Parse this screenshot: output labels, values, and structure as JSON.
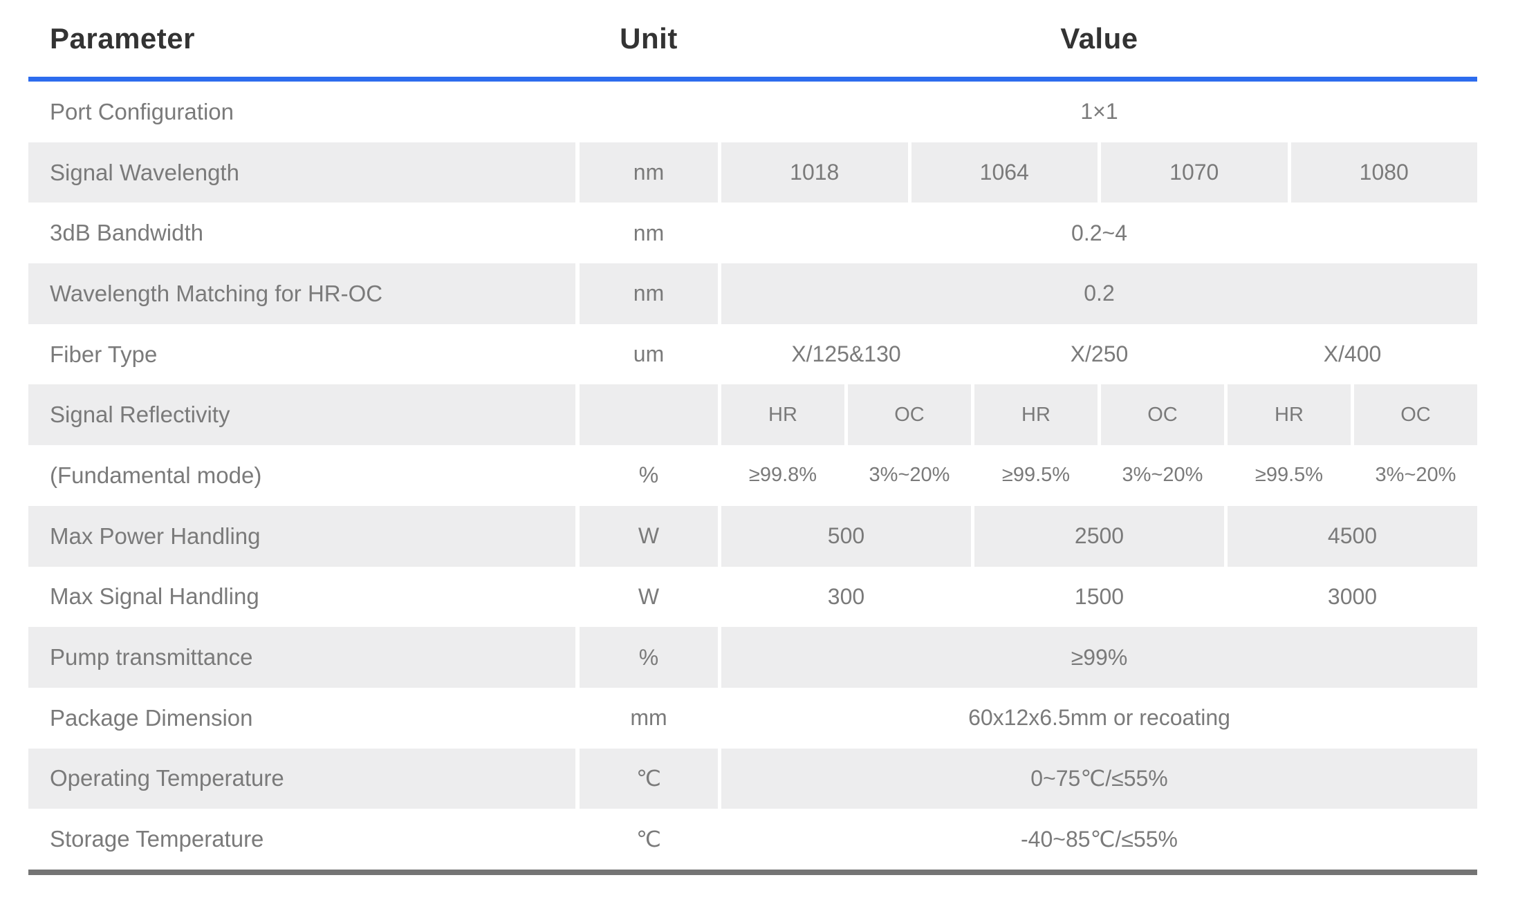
{
  "colors": {
    "accent_blue": "#2d6cee",
    "bottom_bar_gray": "#747474",
    "row_shade_gray": "#ededee",
    "header_text": "#333333",
    "body_text": "#7a7a7a"
  },
  "header": {
    "parameter": "Parameter",
    "unit": "Unit",
    "value": "Value"
  },
  "table": {
    "rows": [
      {
        "param": "Port Configuration",
        "unit": "",
        "values": [
          "1×1"
        ],
        "shaded": false
      },
      {
        "param": "Signal Wavelength",
        "unit": "nm",
        "values": [
          "1018",
          "1064",
          "1070",
          "1080"
        ],
        "shaded": true
      },
      {
        "param": "3dB Bandwidth",
        "unit": "nm",
        "values": [
          "0.2~4"
        ],
        "shaded": false
      },
      {
        "param": "Wavelength Matching for HR-OC",
        "unit": "nm",
        "values": [
          "0.2"
        ],
        "shaded": true
      },
      {
        "param": "Fiber Type",
        "unit": "um",
        "values": [
          "X/125&130",
          "X/250",
          "X/400"
        ],
        "shaded": false
      },
      {
        "param": "Signal Reflectivity",
        "unit": "",
        "values": [
          "HR",
          "OC",
          "HR",
          "OC",
          "HR",
          "OC"
        ],
        "shaded": true
      },
      {
        "param": "(Fundamental mode)",
        "unit": "%",
        "values": [
          "≥99.8%",
          "3%~20%",
          "≥99.5%",
          "3%~20%",
          "≥99.5%",
          "3%~20%"
        ],
        "shaded": false
      },
      {
        "param": "Max Power Handling",
        "unit": "W",
        "values": [
          "500",
          "2500",
          "4500"
        ],
        "shaded": true
      },
      {
        "param": "Max Signal Handling",
        "unit": "W",
        "values": [
          "300",
          "1500",
          "3000"
        ],
        "shaded": false
      },
      {
        "param": "Pump transmittance",
        "unit": "%",
        "values": [
          "≥99%"
        ],
        "shaded": true
      },
      {
        "param": "Package Dimension",
        "unit": "mm",
        "values": [
          "60x12x6.5mm or recoating"
        ],
        "shaded": false
      },
      {
        "param": "Operating Temperature",
        "unit": "℃",
        "values": [
          "0~75℃/≤55%"
        ],
        "shaded": true
      },
      {
        "param": "Storage Temperature",
        "unit": "℃",
        "values": [
          "-40~85℃/≤55%"
        ],
        "shaded": false
      }
    ]
  }
}
